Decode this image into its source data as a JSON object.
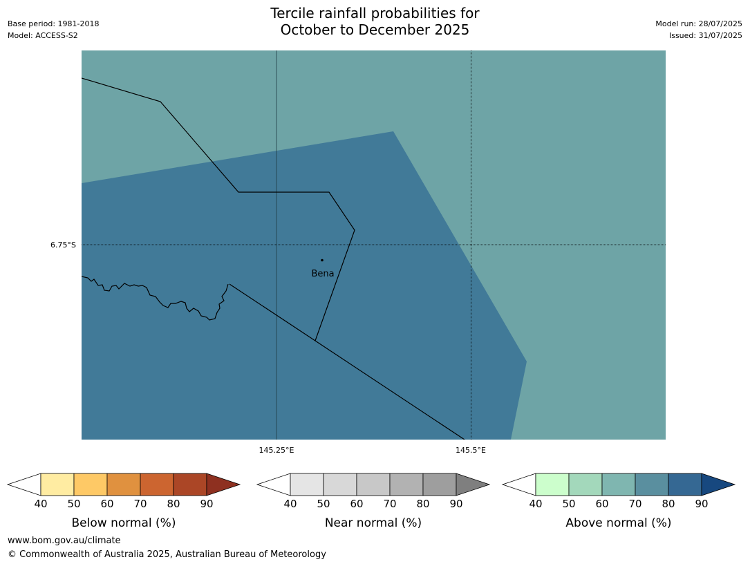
{
  "header": {
    "title_line1": "Tercile rainfall probabilities for",
    "title_line2": "October to December 2025",
    "base_period": "Base period: 1981-2018",
    "model": "Model: ACCESS-S2",
    "model_run": "Model run: 28/07/2025",
    "issued": "Issued: 31/07/2025"
  },
  "map": {
    "latitude_labels": [
      "6.75°S"
    ],
    "longitude_labels": [
      "145.25°E",
      "145.5°E"
    ],
    "place_label": "Bena",
    "colors": {
      "above_70_80": "#6ea4a6",
      "above_80_90": "#417a98",
      "gridline": "#000000",
      "boundary": "#000000"
    }
  },
  "legend": [
    {
      "label": "Below normal (%)",
      "ticks": [
        "40",
        "50",
        "60",
        "70",
        "80",
        "90"
      ],
      "colors": [
        "#ffffff",
        "#ffeca2",
        "#fec966",
        "#e0913f",
        "#cc6530",
        "#ab4626",
        "#8e3020"
      ]
    },
    {
      "label": "Near normal (%)",
      "ticks": [
        "40",
        "50",
        "60",
        "70",
        "80",
        "90"
      ],
      "colors": [
        "#ffffff",
        "#e5e5e5",
        "#d8d8d8",
        "#c8c8c8",
        "#b2b2b2",
        "#9e9e9e",
        "#7f7f7f"
      ]
    },
    {
      "label": "Above normal (%)",
      "ticks": [
        "40",
        "50",
        "60",
        "70",
        "80",
        "90"
      ],
      "colors": [
        "#ffffff",
        "#ccfecc",
        "#a3d8bb",
        "#7fb6b0",
        "#5a8f9f",
        "#356893",
        "#17487f"
      ]
    }
  ],
  "footer": {
    "website": "www.bom.gov.au/climate",
    "copyright": "© Commonwealth of Australia 2025, Australian Bureau of Meteorology"
  }
}
